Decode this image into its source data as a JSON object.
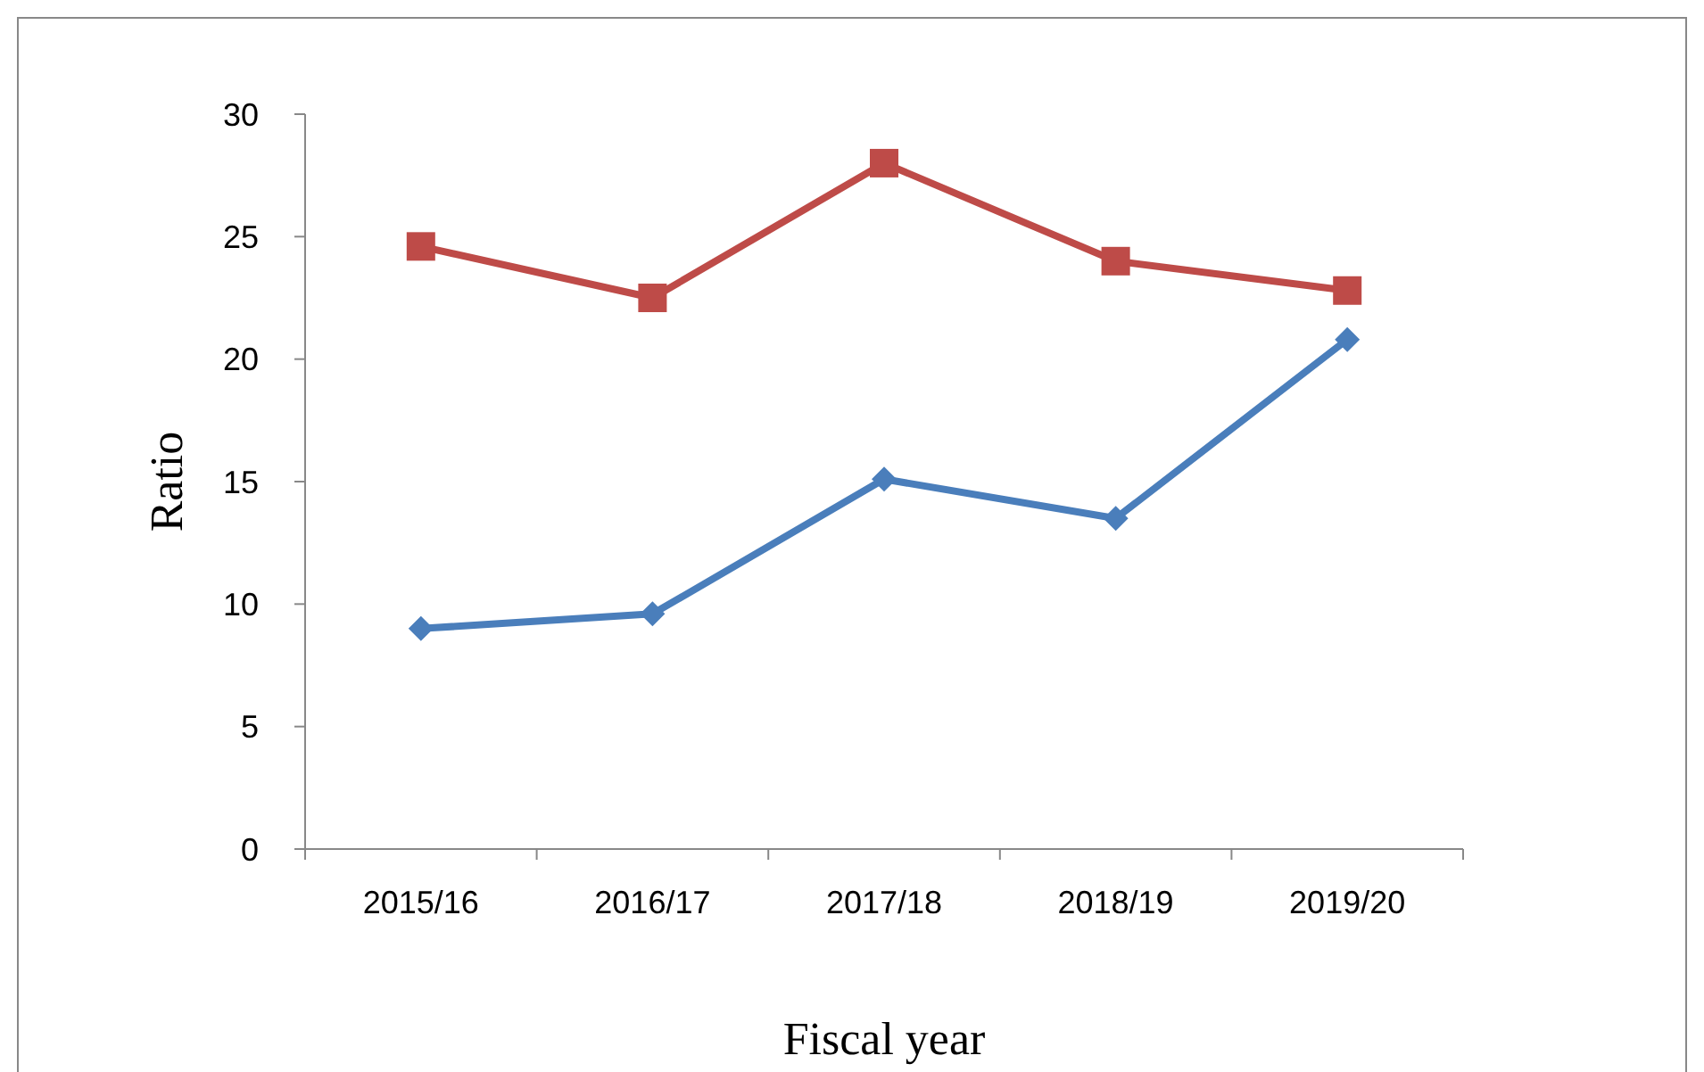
{
  "chart_data": {
    "type": "line",
    "xlabel": "Fiscal year",
    "ylabel": "Ratio",
    "categories": [
      "2015/16",
      "2016/17",
      "2017/18",
      "2018/19",
      "2019/20"
    ],
    "series": [
      {
        "color": "#4a7ebb",
        "marker": "diamond",
        "values": [
          9.0,
          9.6,
          15.1,
          13.5,
          20.8
        ]
      },
      {
        "color": "#be4b48",
        "marker": "square",
        "values": [
          24.6,
          22.5,
          28.0,
          24.0,
          22.8
        ]
      }
    ],
    "ylim": [
      0,
      30
    ],
    "yticks": [
      0,
      5,
      10,
      15,
      20,
      25,
      30
    ],
    "grid": false
  }
}
